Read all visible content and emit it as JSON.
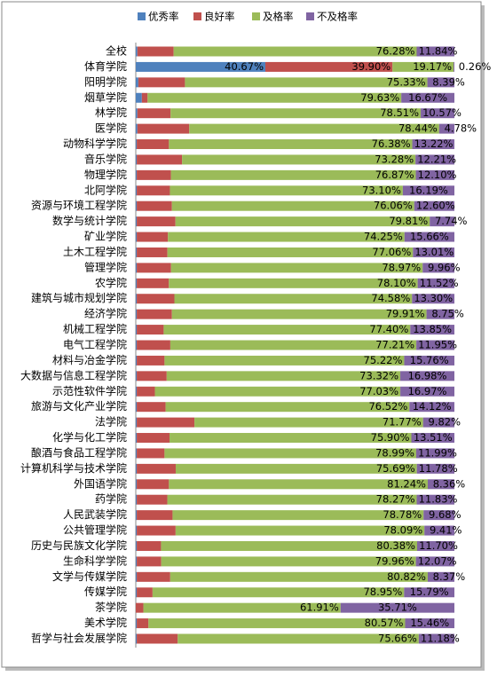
{
  "chart_data": {
    "type": "stacked-barh",
    "categories": [
      "全校",
      "体育学院",
      "阳明学院",
      "烟草学院",
      "林学院",
      "医学院",
      "动物科学学院",
      "音乐学院",
      "物理学院",
      "北阿学院",
      "资源与环境工程学院",
      "数学与统计学院",
      "矿业学院",
      "土木工程学院",
      "管理学院",
      "农学院",
      "建筑与城市规划学院",
      "经济学院",
      "机械工程学院",
      "电气工程学院",
      "材料与冶金学院",
      "大数据与信息工程学院",
      "示范性软件学院",
      "旅游与文化产业学院",
      "法学院",
      "化学与化工学院",
      "酿酒与食品工程学院",
      "计算机科学与技术学院",
      "外国语学院",
      "药学院",
      "人民武装学院",
      "公共管理学院",
      "历史与民族文化学院",
      "生命科学学院",
      "文学与传媒学院",
      "传媒学院",
      "茶学院",
      "美术学院",
      "哲学与社会发展学院"
    ],
    "series": [
      {
        "name": "优秀率",
        "color": "#4f81bd",
        "values": [
          0.5,
          40.67,
          0.8,
          1.9,
          0.5,
          0.5,
          0.3,
          0.3,
          0.3,
          0.3,
          0.3,
          0.3,
          0.3,
          0.3,
          0.3,
          0.3,
          0.3,
          0.3,
          0.3,
          0.3,
          0.3,
          0.3,
          0.3,
          0.3,
          0.3,
          0.3,
          0.3,
          0.3,
          0.3,
          0.3,
          0.3,
          0.3,
          0.3,
          0.3,
          0.3,
          0.3,
          0,
          0.3,
          0.3
        ],
        "value_labels": [
          null,
          "40.67%",
          null,
          null,
          null,
          null,
          null,
          null,
          null,
          null,
          null,
          null,
          null,
          null,
          null,
          null,
          null,
          null,
          null,
          null,
          null,
          null,
          null,
          null,
          null,
          null,
          null,
          null,
          null,
          null,
          null,
          null,
          null,
          null,
          null,
          null,
          null,
          null,
          null
        ]
      },
      {
        "name": "良好率",
        "color": "#c0504d",
        "values": [
          11.38,
          39.9,
          14.48,
          1.8,
          10.42,
          16.28,
          10.1,
          14.21,
          10.73,
          10.41,
          11.04,
          12.15,
          9.79,
          9.63,
          10.77,
          10.08,
          11.82,
          11.04,
          8.45,
          10.54,
          8.72,
          9.4,
          5.7,
          9.06,
          18.11,
          10.29,
          8.72,
          12.23,
          10.1,
          9.6,
          11.24,
          12.2,
          7.62,
          7.67,
          10.51,
          4.96,
          2.38,
          3.67,
          12.86
        ],
        "value_labels": [
          null,
          "39.90%",
          null,
          null,
          null,
          null,
          null,
          null,
          null,
          null,
          null,
          null,
          null,
          null,
          null,
          null,
          null,
          null,
          null,
          null,
          null,
          null,
          null,
          null,
          null,
          null,
          null,
          null,
          null,
          null,
          null,
          null,
          null,
          null,
          null,
          null,
          null,
          null,
          null
        ]
      },
      {
        "name": "及格率",
        "color": "#9bbb59",
        "values": [
          76.28,
          19.17,
          75.33,
          79.63,
          78.51,
          78.44,
          76.38,
          73.28,
          76.87,
          73.1,
          76.06,
          79.81,
          74.25,
          77.06,
          78.97,
          78.1,
          74.58,
          79.91,
          77.4,
          77.21,
          75.22,
          73.32,
          77.03,
          76.52,
          71.77,
          75.9,
          78.99,
          75.69,
          81.24,
          78.27,
          78.78,
          78.09,
          80.38,
          79.96,
          80.82,
          78.95,
          61.91,
          80.57,
          75.66
        ],
        "value_labels": [
          "76.28%",
          "19.17%",
          "75.33%",
          "79.63%",
          "78.51%",
          "78.44%",
          "76.38%",
          "73.28%",
          "76.87%",
          "73.10%",
          "76.06%",
          "79.81%",
          "74.25%",
          "77.06%",
          "78.97%",
          "78.10%",
          "74.58%",
          "79.91%",
          "77.40%",
          "77.21%",
          "75.22%",
          "73.32%",
          "77.03%",
          "76.52%",
          "71.77%",
          "75.90%",
          "78.99%",
          "75.69%",
          "81.24%",
          "78.27%",
          "78.78%",
          "78.09%",
          "80.38%",
          "79.96%",
          "80.82%",
          "78.95%",
          "61.91%",
          "80.57%",
          "75.66%"
        ]
      },
      {
        "name": "不及格率",
        "color": "#8064a2",
        "values": [
          11.84,
          0.26,
          8.39,
          16.67,
          10.57,
          4.78,
          13.22,
          12.21,
          12.1,
          16.19,
          12.6,
          7.74,
          15.66,
          13.01,
          9.96,
          11.52,
          13.3,
          8.75,
          13.85,
          11.95,
          15.76,
          16.98,
          16.97,
          14.12,
          9.82,
          13.51,
          11.99,
          11.78,
          8.36,
          11.83,
          9.68,
          9.41,
          11.7,
          12.07,
          8.37,
          15.79,
          35.71,
          15.46,
          11.18
        ],
        "value_labels": [
          "11.84%",
          "0.26%",
          "8.39%",
          "16.67%",
          "10.57%",
          "4.78%",
          "13.22%",
          "12.21%",
          "12.10%",
          "16.19%",
          "12.60%",
          "7.74%",
          "15.66%",
          "13.01%",
          "9.96%",
          "11.52%",
          "13.30%",
          "8.75%",
          "13.85%",
          "11.95%",
          "15.76%",
          "16.98%",
          "16.97%",
          "14.12%",
          "9.82%",
          "13.51%",
          "11.99%",
          "11.78%",
          "8.36%",
          "11.83%",
          "9.68%",
          "9.41%",
          "11.70%",
          "12.07%",
          "8.37%",
          "15.79%",
          "35.71%",
          "15.46%",
          "11.18%"
        ]
      }
    ],
    "legend": "top"
  }
}
